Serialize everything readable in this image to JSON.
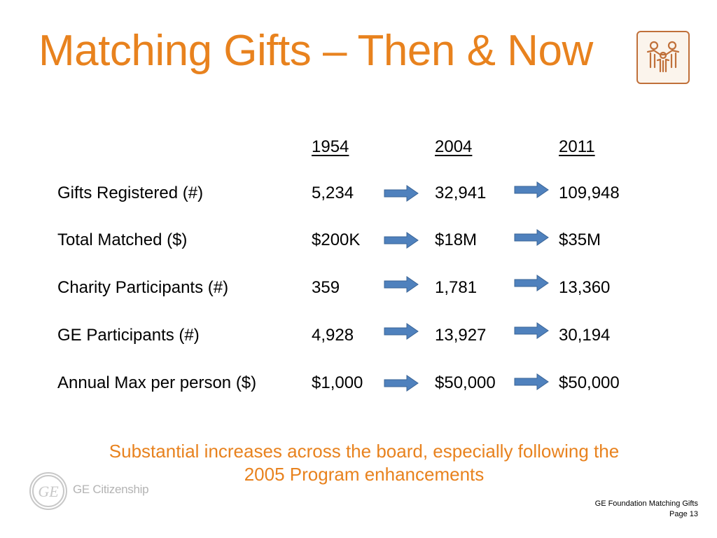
{
  "slide": {
    "title": "Matching Gifts – Then & Now",
    "accent_color": "#E8821E",
    "logo_icon": "people-group-icon"
  },
  "table": {
    "years": [
      "1954",
      "2004",
      "2011"
    ],
    "rows": [
      {
        "label": "Gifts Registered (#)",
        "values": [
          "5,234",
          "32,941",
          "109,948"
        ]
      },
      {
        "label": "Total Matched ($)",
        "values": [
          "$200K",
          "$18M",
          "$35M"
        ]
      },
      {
        "label": "Charity Participants (#)",
        "values": [
          "359",
          "1,781",
          "13,360"
        ]
      },
      {
        "label": "GE Participants (#)",
        "values": [
          "4,928",
          "13,927",
          "30,194"
        ]
      },
      {
        "label": "Annual Max per person ($)",
        "values": [
          "$1,000",
          "$50,000",
          "$50,000"
        ]
      }
    ],
    "arrow_icon": "right-arrow-icon",
    "arrow_color": "#4F81BD"
  },
  "summary": {
    "text": "Substantial increases across the board, especially following the 2005 Program enhancements"
  },
  "branding": {
    "ge_logo_icon": "ge-monogram-icon",
    "citizenship_text": "GE Citizenship"
  },
  "footer": {
    "title": "GE Foundation Matching Gifts",
    "page": "Page 13"
  }
}
